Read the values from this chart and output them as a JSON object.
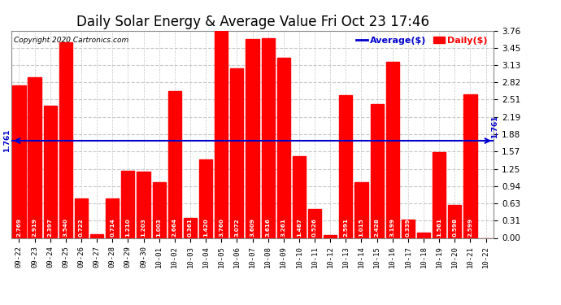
{
  "title": "Daily Solar Energy & Average Value Fri Oct 23 17:46",
  "copyright": "Copyright 2020 Cartronics.com",
  "categories": [
    "09-22",
    "09-23",
    "09-24",
    "09-25",
    "09-26",
    "09-27",
    "09-28",
    "09-29",
    "09-30",
    "10-01",
    "10-02",
    "10-03",
    "10-04",
    "10-05",
    "10-06",
    "10-07",
    "10-08",
    "10-09",
    "10-10",
    "10-11",
    "10-12",
    "10-13",
    "10-14",
    "10-15",
    "10-16",
    "10-17",
    "10-18",
    "10-19",
    "10-20",
    "10-21",
    "10-22"
  ],
  "values": [
    2.769,
    2.919,
    2.397,
    3.54,
    0.722,
    0.063,
    0.714,
    1.21,
    1.203,
    1.003,
    2.664,
    0.361,
    1.42,
    3.76,
    3.072,
    3.609,
    3.616,
    3.261,
    1.487,
    0.526,
    0.048,
    2.591,
    1.015,
    2.428,
    3.199,
    0.339,
    0.092,
    1.561,
    0.598,
    2.599,
    0.0
  ],
  "average": 1.761,
  "bar_color": "#ff0000",
  "average_color": "#0000cc",
  "background_color": "#ffffff",
  "grid_color": "#c8c8c8",
  "ylim": [
    0.0,
    3.76
  ],
  "yticks": [
    0.0,
    0.31,
    0.63,
    0.94,
    1.25,
    1.57,
    1.88,
    2.19,
    2.51,
    2.82,
    3.13,
    3.45,
    3.76
  ],
  "title_fontsize": 12,
  "bar_width": 0.85,
  "legend_avg_label": "Average($)",
  "legend_daily_label": "Daily($)"
}
